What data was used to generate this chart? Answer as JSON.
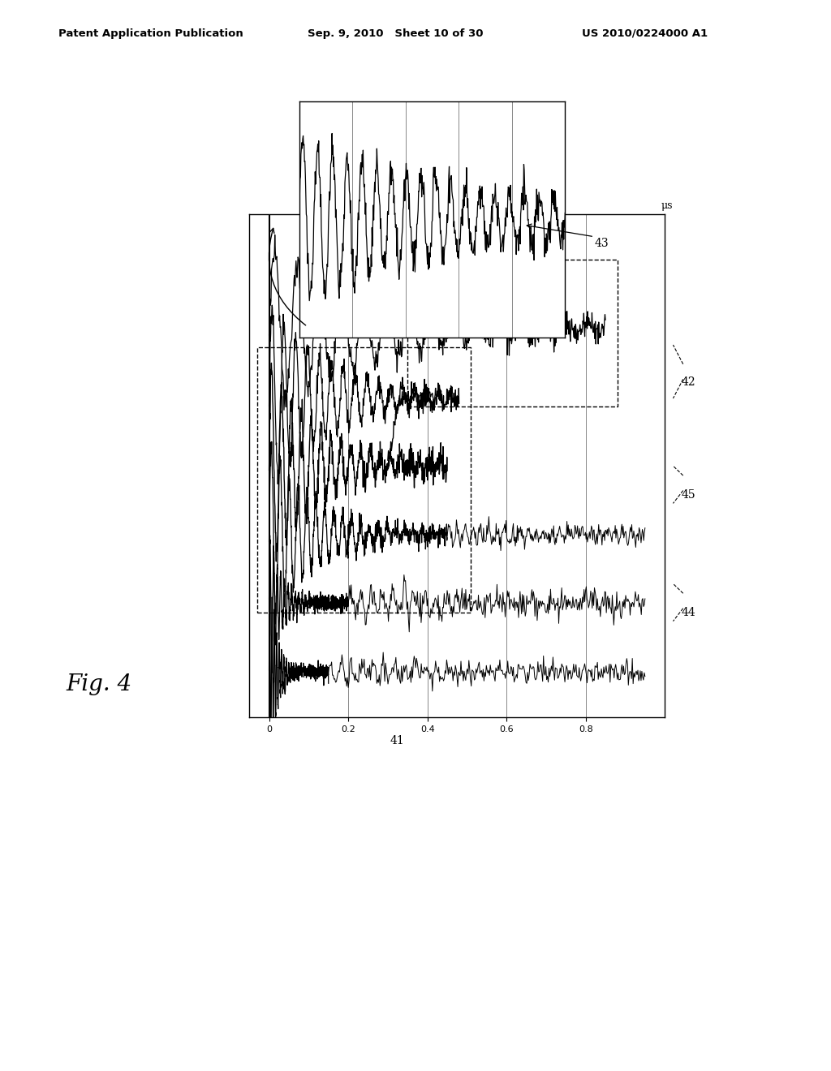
{
  "title_left": "Patent Application Publication",
  "title_center": "Sep. 9, 2010   Sheet 10 of 30",
  "title_right": "US 2010/0224000 A1",
  "fig_label": "Fig. 4",
  "label_41": "41",
  "label_42": "42",
  "label_43": "43",
  "label_44": "44",
  "label_45": "45",
  "ylabel_us": "μs",
  "xticks": [
    0,
    0.2,
    0.4,
    0.6,
    0.8
  ],
  "background_color": "#ffffff",
  "line_color": "#000000",
  "grid_color": "#888888"
}
